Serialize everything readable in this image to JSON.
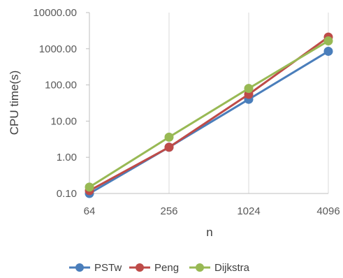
{
  "chart_data": {
    "type": "line",
    "title": "",
    "xlabel": "n",
    "ylabel": "CPU time(s)",
    "y_scale": "log",
    "ylim": [
      0.1,
      10000
    ],
    "y_ticks": [
      "0.10",
      "1.00",
      "10.00",
      "100.00",
      "1000.00",
      "10000.00"
    ],
    "y_tick_values": [
      0.1,
      1,
      10,
      100,
      1000,
      10000
    ],
    "categories": [
      "64",
      "256",
      "1024",
      "4096"
    ],
    "grid": "vertical",
    "legend_position": "bottom",
    "series": [
      {
        "name": "PSTw",
        "color": "#4a7ebb",
        "values": [
          0.1,
          1.9,
          40,
          850
        ]
      },
      {
        "name": "Peng",
        "color": "#be4b48",
        "values": [
          0.12,
          1.9,
          55,
          2100
        ]
      },
      {
        "name": "Dijkstra",
        "color": "#98b954",
        "values": [
          0.15,
          3.6,
          80,
          1650
        ]
      }
    ]
  }
}
